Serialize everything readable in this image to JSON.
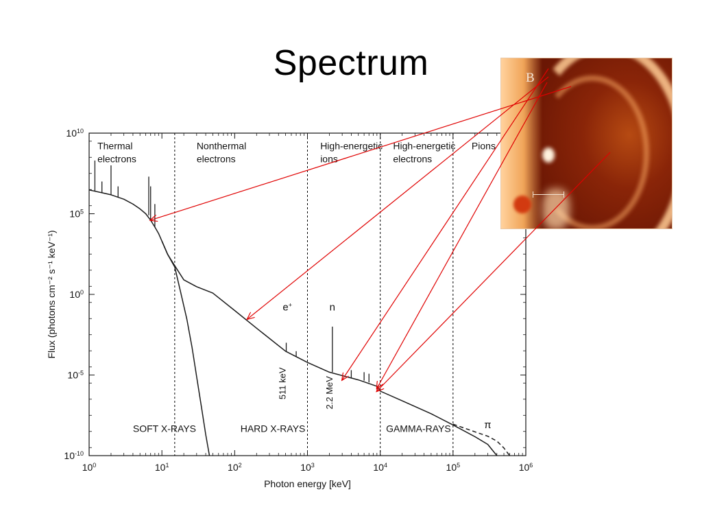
{
  "slide": {
    "title": "Spectrum"
  },
  "inset": {
    "label": "B",
    "image_name": "solar-flare-loop-image"
  },
  "colors": {
    "curve": "#1a1a1a",
    "arrows": "#e00000",
    "divider": "#000000"
  },
  "chart_data": {
    "type": "line",
    "xscale": "log",
    "yscale": "log",
    "xlim": [
      1,
      1000000
    ],
    "ylim": [
      1e-10,
      10000000000.0
    ],
    "xlabel": "Photon energy [keV]",
    "ylabel": "Flux (photons cm⁻² s⁻¹ keV⁻¹)",
    "x_ticks": [
      {
        "base": "10",
        "exp": "0",
        "value": 1
      },
      {
        "base": "10",
        "exp": "1",
        "value": 10
      },
      {
        "base": "10",
        "exp": "2",
        "value": 100
      },
      {
        "base": "10",
        "exp": "3",
        "value": 1000
      },
      {
        "base": "10",
        "exp": "4",
        "value": 10000
      },
      {
        "base": "10",
        "exp": "5",
        "value": 100000
      },
      {
        "base": "10",
        "exp": "6",
        "value": 1000000
      }
    ],
    "y_ticks": [
      {
        "base": "10",
        "exp": "10",
        "value": 10000000000.0
      },
      {
        "base": "10",
        "exp": "5",
        "value": 100000.0
      },
      {
        "base": "10",
        "exp": "0",
        "value": 1
      },
      {
        "base": "10",
        "exp": "-5",
        "value": 1e-05
      },
      {
        "base": "10",
        "exp": "-10",
        "value": 1e-10
      }
    ],
    "region_dividers": [
      15,
      1000,
      10000,
      100000
    ],
    "regions": [
      {
        "lines": [
          "Thermal",
          "electrons"
        ],
        "x": 1.3,
        "y": 1000000000.0
      },
      {
        "lines": [
          "Nonthermal",
          "electrons"
        ],
        "x": 30,
        "y": 1000000000.0
      },
      {
        "lines": [
          "High-energetic",
          "ions"
        ],
        "x": 1500,
        "y": 1000000000.0
      },
      {
        "lines": [
          "High-energetic",
          "electrons"
        ],
        "x": 15000,
        "y": 1000000000.0
      },
      {
        "lines": [
          "Pions"
        ],
        "x": 180000,
        "y": 1000000000.0
      }
    ],
    "bands": [
      {
        "label": "SOFT X-RAYS",
        "x": 4,
        "y": 3e-09
      },
      {
        "label": "HARD X-RAYS",
        "x": 120,
        "y": 3e-09
      },
      {
        "label": "GAMMA-RAYS",
        "x": 12000,
        "y": 3e-09
      }
    ],
    "lines_labels": [
      {
        "text": "511 keV",
        "x": 500,
        "y": 3e-06,
        "rotate": true
      },
      {
        "text": "2.2 MeV",
        "x": 2200,
        "y": 8e-07,
        "rotate": true
      }
    ],
    "particle_labels": [
      {
        "base": "e",
        "sup": "+",
        "x": 530,
        "y": 0.1
      },
      {
        "base": "n",
        "sup": "",
        "x": 2200,
        "y": 0.1
      },
      {
        "base": "π",
        "sup": "",
        "x": 300000,
        "y": 5e-09
      }
    ],
    "series": [
      {
        "style": "solid",
        "x": [
          1,
          1.5,
          2,
          3,
          4,
          5,
          6,
          7,
          8,
          9,
          10,
          12,
          15,
          20,
          30,
          50,
          100,
          200,
          500,
          1000,
          2000,
          5000,
          9000,
          10000,
          20000,
          50000,
          100000,
          200000,
          300000,
          400000
        ],
        "y": [
          3000000.0,
          2000000.0,
          1500000.0,
          800000.0,
          400000.0,
          200000.0,
          100000.0,
          40000.0,
          15000.0,
          6000.0,
          2000.0,
          300.0,
          60,
          8,
          3,
          1.2,
          0.1,
          0.008,
          0.0003,
          6e-05,
          1.5e-05,
          5e-06,
          2e-06,
          1e-06,
          2.5e-07,
          4e-08,
          8e-09,
          1.5e-09,
          5e-10,
          1e-10
        ]
      },
      {
        "style": "solid",
        "x": [
          10,
          12,
          15,
          18,
          22,
          26,
          30,
          35,
          40,
          45
        ],
        "y": [
          2000.0,
          300.0,
          50,
          1.5,
          0.03,
          0.0005,
          8e-06,
          1e-07,
          2e-09,
          1e-10
        ]
      },
      {
        "style": "dashed",
        "x": [
          100000,
          200000,
          300000,
          400000,
          500000,
          600000
        ],
        "y": [
          9e-09,
          3e-09,
          1.6e-09,
          8e-10,
          3e-10,
          1e-10
        ]
      }
    ],
    "spikes": [
      {
        "x": 1.2,
        "top": 200000000.0,
        "base": 2500000.0
      },
      {
        "x": 1.5,
        "top": 10000000.0,
        "base": 2000000.0
      },
      {
        "x": 2,
        "top": 100000000.0,
        "base": 1500000.0
      },
      {
        "x": 2.5,
        "top": 5000000.0,
        "base": 1100000.0
      },
      {
        "x": 6.6,
        "top": 20000000.0,
        "base": 80000.0
      },
      {
        "x": 7,
        "top": 5000000.0,
        "base": 40000.0
      },
      {
        "x": 8,
        "top": 400000.0,
        "base": 15000.0
      },
      {
        "x": 511,
        "top": 0.001,
        "base": 0.00028
      },
      {
        "x": 700,
        "top": 0.0003,
        "base": 0.00013
      },
      {
        "x": 2200,
        "top": 0.01,
        "base": 1.5e-05
      },
      {
        "x": 4000,
        "top": 2e-05,
        "base": 7e-06
      },
      {
        "x": 6000,
        "top": 1.5e-05,
        "base": 4.5e-06
      },
      {
        "x": 7000,
        "top": 1.2e-05,
        "base": 3.5e-06
      }
    ],
    "annotations": [
      {
        "type": "arrow",
        "from": "inset",
        "to_x": 7,
        "to_y": 40000.0
      },
      {
        "type": "arrow",
        "from": "inset",
        "to_x": 150,
        "to_y": 0.03
      },
      {
        "type": "arrow",
        "from": "inset",
        "to_x": 3000,
        "to_y": 5e-06
      },
      {
        "type": "arrow",
        "from": "inset",
        "to_x": 9000,
        "to_y": 1.5e-06
      },
      {
        "type": "arrow",
        "from": "inset",
        "to_x": 9000,
        "to_y": 1e-06
      }
    ]
  }
}
